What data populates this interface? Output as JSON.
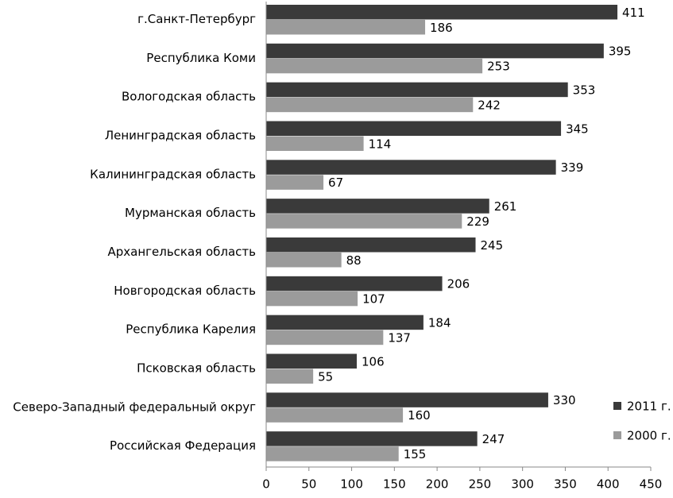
{
  "chart_data": {
    "type": "hbar",
    "categories": [
      "г.Санкт-Петербург",
      "Республика Коми",
      "Вологодская область",
      "Ленинградская область",
      "Калининградская область",
      "Мурманская область",
      "Архангельская область",
      "Новгородская область",
      "Республика Карелия",
      "Псковская область",
      "Северо-Западный федеральный округ",
      "Российская Федерация"
    ],
    "series": [
      {
        "name": "2011 г.",
        "color": "#3a3a3a",
        "values": [
          411,
          395,
          353,
          345,
          339,
          261,
          245,
          206,
          184,
          106,
          330,
          247
        ]
      },
      {
        "name": "2000 г.",
        "color": "#9b9b9b",
        "values": [
          186,
          253,
          242,
          114,
          67,
          229,
          88,
          107,
          137,
          55,
          160,
          155
        ]
      }
    ],
    "xlim": [
      0,
      450
    ],
    "xticks": [
      0,
      50,
      100,
      150,
      200,
      250,
      300,
      350,
      400,
      450
    ],
    "legend": "lower right"
  }
}
